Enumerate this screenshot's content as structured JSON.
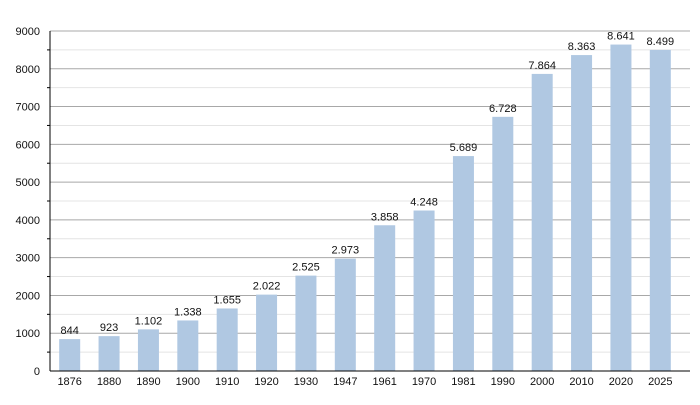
{
  "chart_data": {
    "type": "bar",
    "title": "",
    "xlabel": "",
    "ylabel": "",
    "categories": [
      "1876",
      "1880",
      "1890",
      "1900",
      "1910",
      "1920",
      "1930",
      "1947",
      "1961",
      "1970",
      "1981",
      "1990",
      "2000",
      "2010",
      "2020",
      "2025"
    ],
    "values": [
      844,
      923,
      1102,
      1338,
      1655,
      2022,
      2525,
      2973,
      3858,
      4248,
      5689,
      6728,
      7864,
      8363,
      8641,
      8499
    ],
    "value_labels": [
      "844",
      "923",
      "1.102",
      "1.338",
      "1.655",
      "2.022",
      "2.525",
      "2.973",
      "3.858",
      "4.248",
      "5.689",
      "6.728",
      "7.864",
      "8.363",
      "8.641",
      "8.499"
    ],
    "ylim": [
      0,
      9000
    ],
    "yticks": [
      "0",
      "1000",
      "2000",
      "3000",
      "4000",
      "5000",
      "6000",
      "7000",
      "8000",
      "9000"
    ],
    "grid": true,
    "bar_color": "#b0c8e2"
  }
}
